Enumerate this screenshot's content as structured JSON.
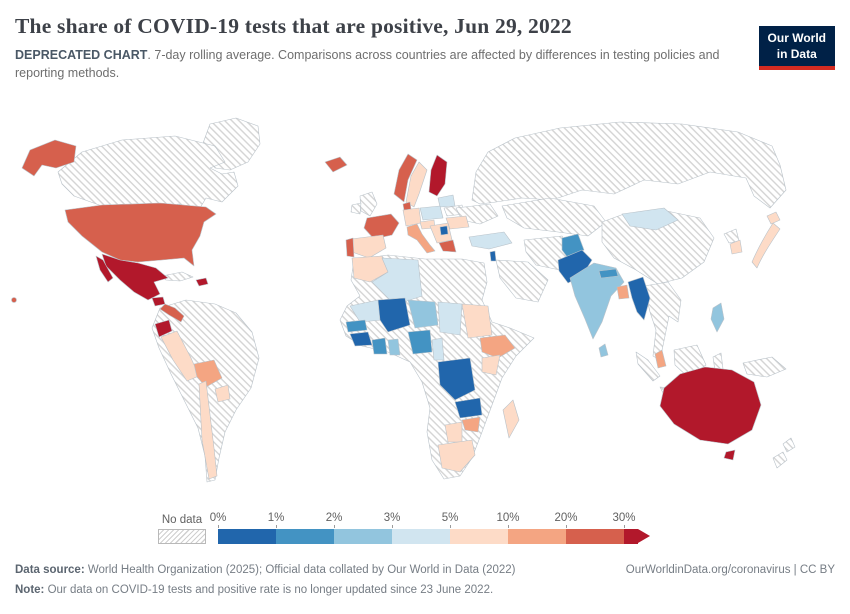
{
  "header": {
    "title": "The share of COVID-19 tests that are positive, Jun 29, 2022",
    "subtitle_bold": "DEPRECATED CHART",
    "subtitle_rest": ". 7-day rolling average. Comparisons across countries are affected by differences in testing policies and reporting methods.",
    "logo": {
      "line1": "Our World",
      "line2": "in Data",
      "bg": "#002147",
      "accent": "#d42b21"
    }
  },
  "legend": {
    "no_data_label": "No data",
    "tick_labels": [
      "0%",
      "1%",
      "2%",
      "3%",
      "5%",
      "10%",
      "20%",
      "30%"
    ]
  },
  "footer": {
    "source_label": "Data source:",
    "source_text": " World Health Organization (2025); Official data collated by Our World in Data (2022)",
    "right_text": "OurWorldinData.org/coronavirus | CC BY",
    "note_label": "Note:",
    "note_text": " Our data on COVID-19 tests and positive rate is no longer updated since 23 June 2022."
  },
  "chart_data": {
    "type": "heatmap",
    "chart_style": "choropleth world map",
    "title": "The share of COVID-19 tests that are positive",
    "date": "Jun 29, 2022",
    "metric": "Share of COVID-19 tests that are positive, 7-day rolling average",
    "unit": "%",
    "legend_position": "bottom",
    "legend_buckets": [
      {
        "label": "No data",
        "color": "hatched"
      },
      {
        "label": "0-1%",
        "color": "#2166ac"
      },
      {
        "label": "1-2%",
        "color": "#4393c3"
      },
      {
        "label": "2-3%",
        "color": "#92c5de"
      },
      {
        "label": "3-5%",
        "color": "#d1e5f0"
      },
      {
        "label": "5-10%",
        "color": "#fddbc7"
      },
      {
        "label": "10-20%",
        "color": "#f4a582"
      },
      {
        "label": "20-30%",
        "color": "#d6604d"
      },
      {
        "label": "30%+",
        "color": "#b2182b"
      }
    ],
    "countries": [
      {
        "id": "united-states",
        "name": "United States",
        "bucket": "20-30%"
      },
      {
        "id": "canada",
        "name": "Canada",
        "bucket": "No data"
      },
      {
        "id": "greenland",
        "name": "Greenland",
        "bucket": "No data"
      },
      {
        "id": "mexico",
        "name": "Mexico",
        "bucket": "30%+"
      },
      {
        "id": "guatemala",
        "name": "Guatemala",
        "bucket": "30%+"
      },
      {
        "id": "central-america",
        "name": "Central America (Honduras-Panama)",
        "bucket": "20-30%"
      },
      {
        "id": "dominican-republic",
        "name": "Dominican Republic",
        "bucket": "30%+"
      },
      {
        "id": "cuba",
        "name": "Cuba",
        "bucket": "No data"
      },
      {
        "id": "ecuador",
        "name": "Ecuador",
        "bucket": "30%+"
      },
      {
        "id": "peru",
        "name": "Peru",
        "bucket": "5-10%"
      },
      {
        "id": "bolivia",
        "name": "Bolivia",
        "bucket": "10-20%"
      },
      {
        "id": "chile",
        "name": "Chile",
        "bucket": "5-10%"
      },
      {
        "id": "paraguay",
        "name": "Paraguay",
        "bucket": "5-10%"
      },
      {
        "id": "south-america-other",
        "name": "Brazil / Argentina / Colombia / Venezuela",
        "bucket": "No data"
      },
      {
        "id": "iceland",
        "name": "Iceland",
        "bucket": "20-30%"
      },
      {
        "id": "united-kingdom",
        "name": "United Kingdom",
        "bucket": "No data"
      },
      {
        "id": "ireland",
        "name": "Ireland",
        "bucket": "No data"
      },
      {
        "id": "norway",
        "name": "Norway",
        "bucket": "20-30%"
      },
      {
        "id": "sweden",
        "name": "Sweden",
        "bucket": "5-10%"
      },
      {
        "id": "finland",
        "name": "Finland",
        "bucket": "30%+"
      },
      {
        "id": "denmark",
        "name": "Denmark",
        "bucket": "20-30%"
      },
      {
        "id": "baltics",
        "name": "Baltic states",
        "bucket": "3-5%"
      },
      {
        "id": "poland",
        "name": "Poland",
        "bucket": "3-5%"
      },
      {
        "id": "germany",
        "name": "Germany",
        "bucket": "5-10%"
      },
      {
        "id": "france",
        "name": "France",
        "bucket": "20-30%"
      },
      {
        "id": "spain",
        "name": "Spain",
        "bucket": "5-10%"
      },
      {
        "id": "portugal",
        "name": "Portugal",
        "bucket": "20-30%"
      },
      {
        "id": "italy",
        "name": "Italy",
        "bucket": "10-20%"
      },
      {
        "id": "austria",
        "name": "Austria",
        "bucket": "5-10%"
      },
      {
        "id": "balkans",
        "name": "Western Balkans",
        "bucket": "5-10%"
      },
      {
        "id": "serbia",
        "name": "Serbia",
        "bucket": "0-1%"
      },
      {
        "id": "greece",
        "name": "Greece",
        "bucket": "20-30%"
      },
      {
        "id": "romania",
        "name": "Romania",
        "bucket": "5-10%"
      },
      {
        "id": "ukraine",
        "name": "Ukraine",
        "bucket": "No data"
      },
      {
        "id": "belarus",
        "name": "Belarus",
        "bucket": "No data"
      },
      {
        "id": "russia",
        "name": "Russia",
        "bucket": "No data"
      },
      {
        "id": "turkey",
        "name": "Turkey",
        "bucket": "3-5%"
      },
      {
        "id": "israel",
        "name": "Israel",
        "bucket": "0-1%"
      },
      {
        "id": "saudi-arabia",
        "name": "Saudi Arabia / Arabian Peninsula",
        "bucket": "No data"
      },
      {
        "id": "iran",
        "name": "Iran",
        "bucket": "No data"
      },
      {
        "id": "morocco",
        "name": "Morocco",
        "bucket": "5-10%"
      },
      {
        "id": "algeria",
        "name": "Algeria",
        "bucket": "3-5%"
      },
      {
        "id": "mauritania",
        "name": "Mauritania",
        "bucket": "3-5%"
      },
      {
        "id": "mali",
        "name": "Mali",
        "bucket": "0-1%"
      },
      {
        "id": "niger",
        "name": "Niger",
        "bucket": "2-3%"
      },
      {
        "id": "chad",
        "name": "Chad",
        "bucket": "3-5%"
      },
      {
        "id": "sudan",
        "name": "Sudan",
        "bucket": "5-10%"
      },
      {
        "id": "senegal",
        "name": "Senegal",
        "bucket": "1-2%"
      },
      {
        "id": "guinea",
        "name": "Guinea",
        "bucket": "0-1%"
      },
      {
        "id": "cote-divoire",
        "name": "Cote d'Ivoire",
        "bucket": "1-2%"
      },
      {
        "id": "ghana",
        "name": "Ghana",
        "bucket": "2-3%"
      },
      {
        "id": "nigeria",
        "name": "Nigeria",
        "bucket": "1-2%"
      },
      {
        "id": "cameroon",
        "name": "Cameroon",
        "bucket": "3-5%"
      },
      {
        "id": "ethiopia",
        "name": "Ethiopia",
        "bucket": "10-20%"
      },
      {
        "id": "kenya",
        "name": "Kenya",
        "bucket": "5-10%"
      },
      {
        "id": "dr-congo",
        "name": "Democratic Republic of Congo",
        "bucket": "0-1%"
      },
      {
        "id": "zambia",
        "name": "Zambia",
        "bucket": "0-1%"
      },
      {
        "id": "zimbabwe",
        "name": "Zimbabwe",
        "bucket": "10-20%"
      },
      {
        "id": "botswana",
        "name": "Botswana",
        "bucket": "5-10%"
      },
      {
        "id": "south-africa",
        "name": "South Africa",
        "bucket": "5-10%"
      },
      {
        "id": "madagascar",
        "name": "Madagascar",
        "bucket": "5-10%"
      },
      {
        "id": "africa-other",
        "name": "Other Africa (Libya, Egypt, Somalia, Angola, Tanzania...)",
        "bucket": "No data"
      },
      {
        "id": "kazakhstan",
        "name": "Kazakhstan / Central Asia",
        "bucket": "No data"
      },
      {
        "id": "mongolia",
        "name": "Mongolia",
        "bucket": "3-5%"
      },
      {
        "id": "china",
        "name": "China",
        "bucket": "No data"
      },
      {
        "id": "afghanistan",
        "name": "Afghanistan",
        "bucket": "1-2%"
      },
      {
        "id": "pakistan",
        "name": "Pakistan",
        "bucket": "0-1%"
      },
      {
        "id": "india",
        "name": "India",
        "bucket": "2-3%"
      },
      {
        "id": "nepal",
        "name": "Nepal",
        "bucket": "1-2%"
      },
      {
        "id": "sri-lanka",
        "name": "Sri Lanka",
        "bucket": "2-3%"
      },
      {
        "id": "bangladesh",
        "name": "Bangladesh",
        "bucket": "10-20%"
      },
      {
        "id": "myanmar",
        "name": "Myanmar",
        "bucket": "0-1%"
      },
      {
        "id": "indochina",
        "name": "Thailand / Vietnam / Laos / Cambodia",
        "bucket": "No data"
      },
      {
        "id": "malaysia",
        "name": "Malaysia",
        "bucket": "10-20%"
      },
      {
        "id": "indonesia",
        "name": "Indonesia",
        "bucket": "No data"
      },
      {
        "id": "philippines",
        "name": "Philippines",
        "bucket": "2-3%"
      },
      {
        "id": "japan",
        "name": "Japan",
        "bucket": "5-10%"
      },
      {
        "id": "south-korea",
        "name": "South Korea",
        "bucket": "5-10%"
      },
      {
        "id": "north-korea",
        "name": "North Korea",
        "bucket": "No data"
      },
      {
        "id": "papua-new-guinea",
        "name": "Papua New Guinea",
        "bucket": "No data"
      },
      {
        "id": "australia",
        "name": "Australia",
        "bucket": "30%+"
      },
      {
        "id": "new-zealand",
        "name": "New Zealand",
        "bucket": "No data"
      }
    ]
  }
}
